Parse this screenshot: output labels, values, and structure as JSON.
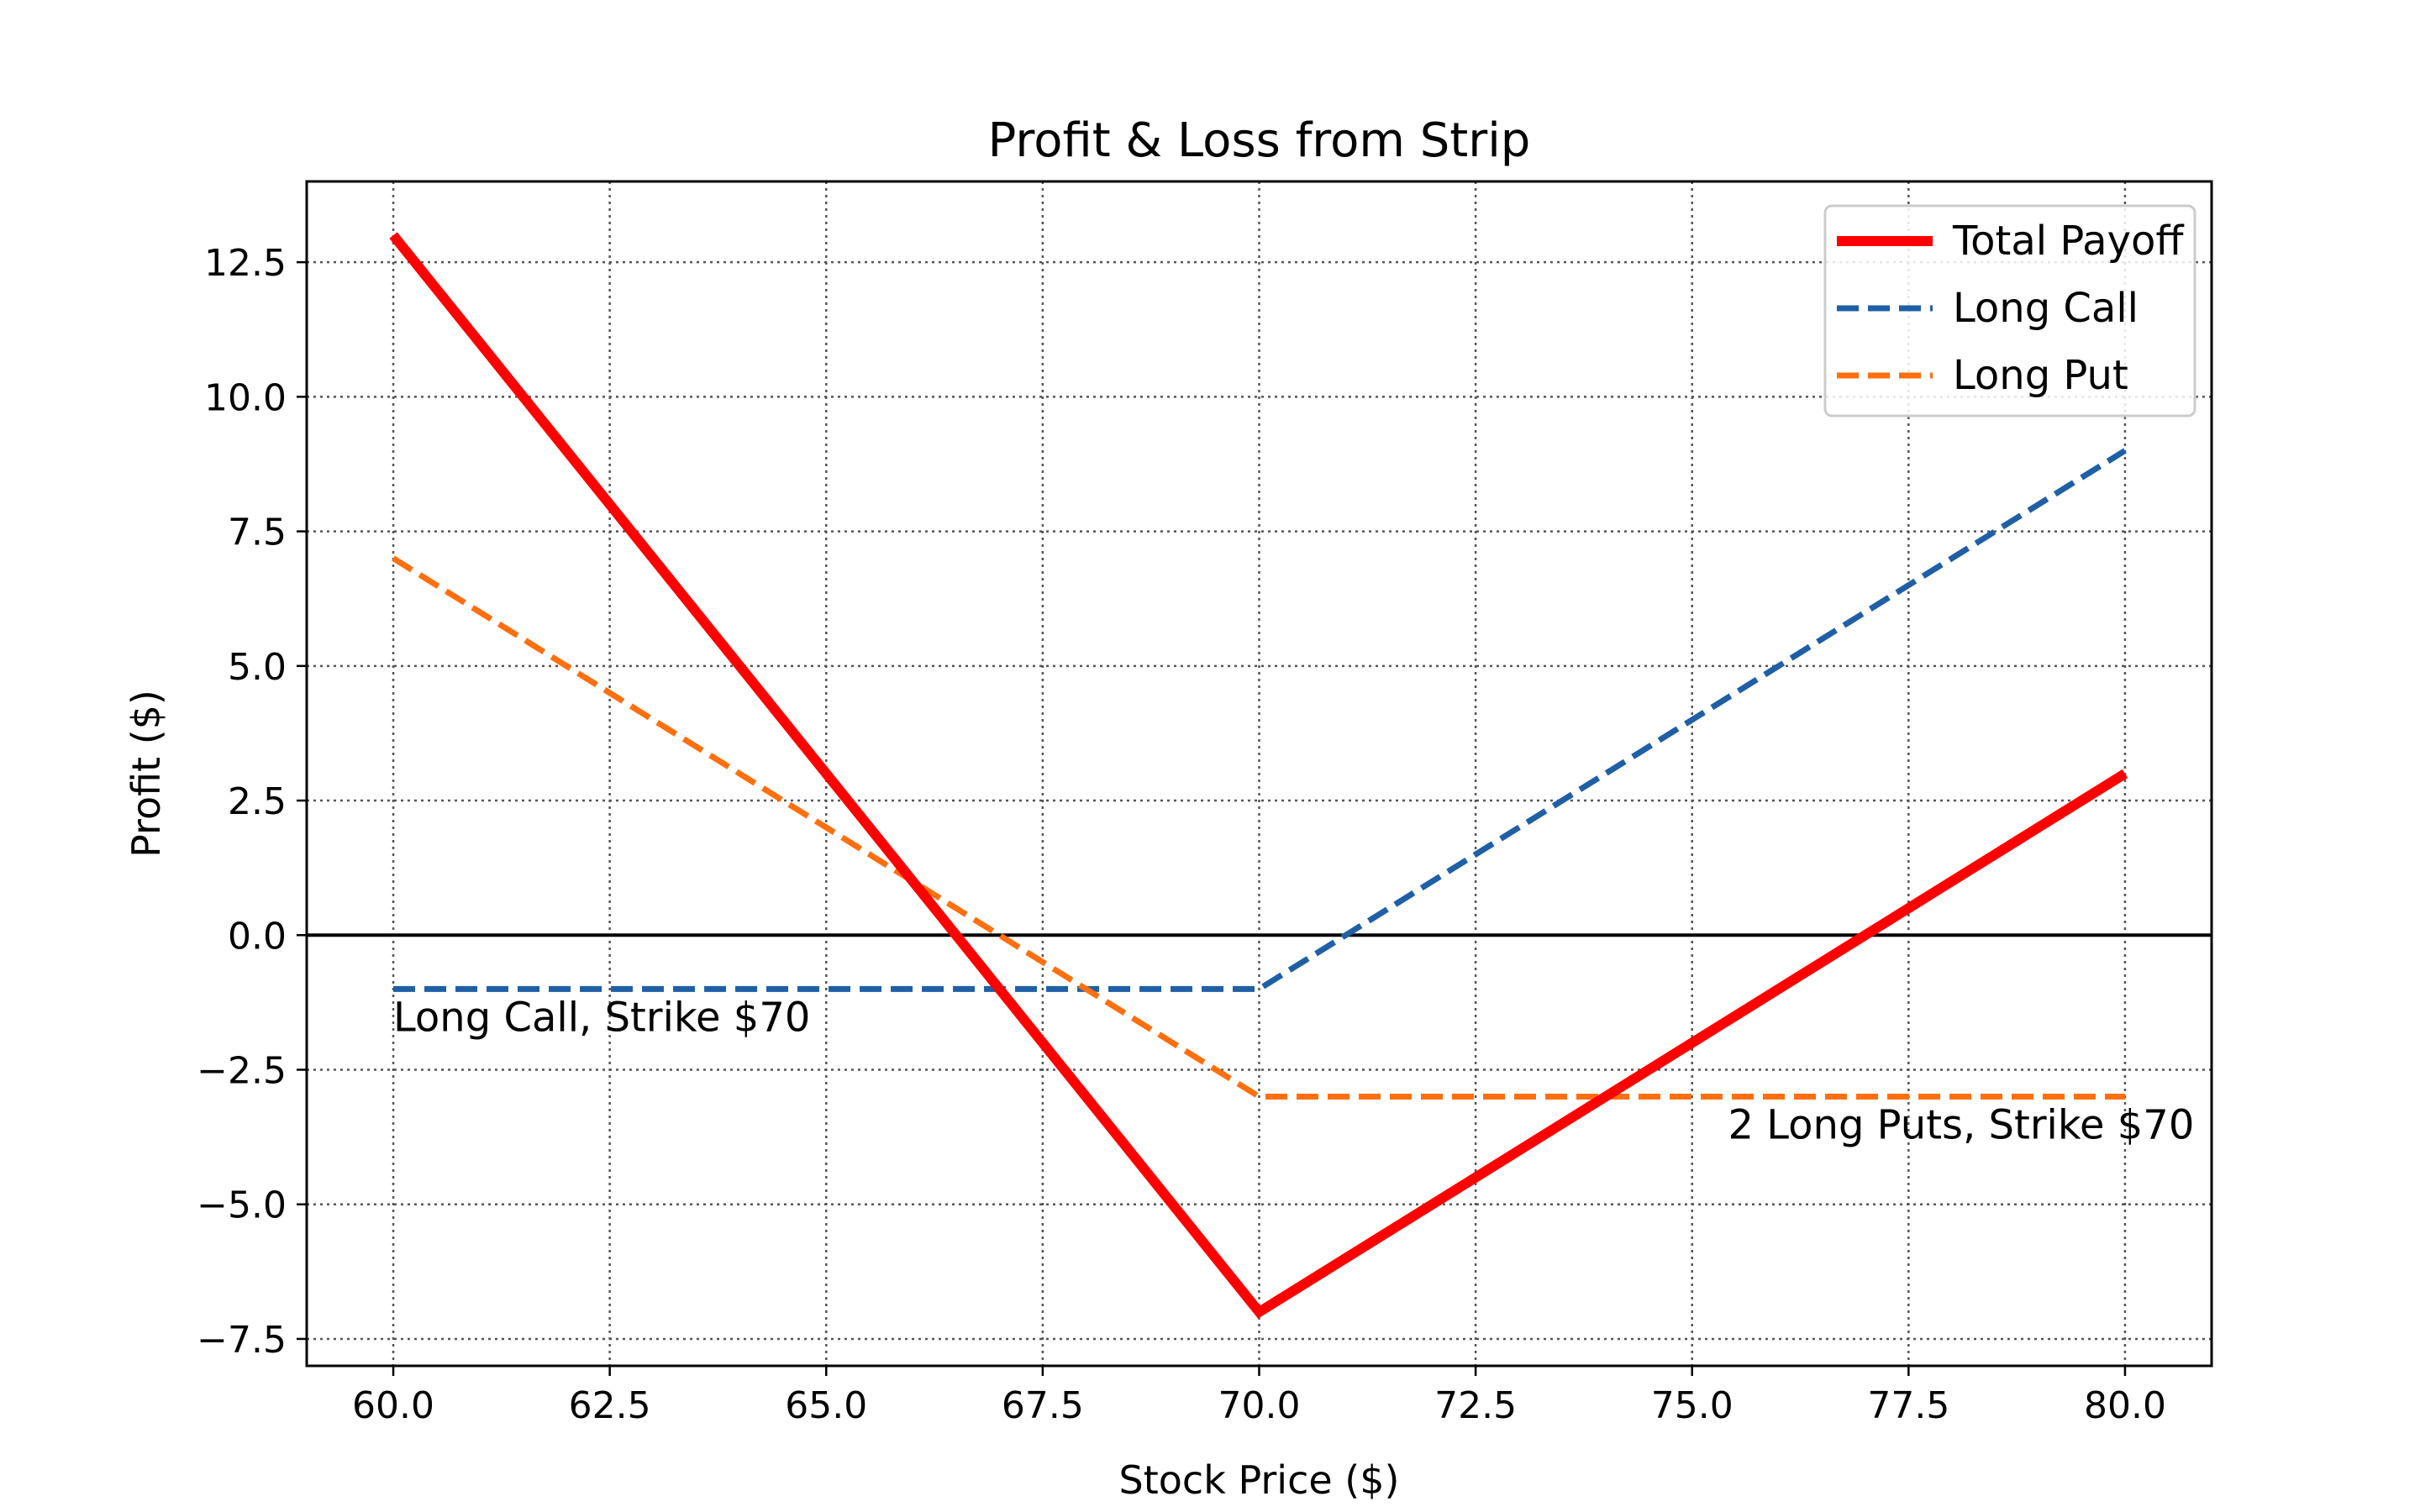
{
  "chart_data": {
    "type": "line",
    "title": "Profit & Loss from Strip",
    "xlabel": "Stock Price ($)",
    "ylabel": "Profit ($)",
    "xlim": [
      59,
      81
    ],
    "ylim": [
      -8,
      14
    ],
    "xticks": [
      60.0,
      62.5,
      65.0,
      67.5,
      70.0,
      72.5,
      75.0,
      77.5,
      80.0
    ],
    "xtick_labels": [
      "60.0",
      "62.5",
      "65.0",
      "67.5",
      "70.0",
      "72.5",
      "75.0",
      "77.5",
      "80.0"
    ],
    "yticks": [
      -7.5,
      -5.0,
      -2.5,
      0.0,
      2.5,
      5.0,
      7.5,
      10.0,
      12.5
    ],
    "ytick_labels": [
      "−7.5",
      "−5.0",
      "−2.5",
      "0.0",
      "2.5",
      "5.0",
      "7.5",
      "10.0",
      "12.5"
    ],
    "grid": true,
    "legend_position": "top-right",
    "zero_line": 0,
    "series": [
      {
        "name": "Total Payoff",
        "style": "solid",
        "color": "#ff0000",
        "x": [
          60,
          70,
          80
        ],
        "y": [
          13,
          -7,
          3
        ]
      },
      {
        "name": "Long Call",
        "style": "dashed",
        "color": "#1f5fa6",
        "x": [
          60,
          70,
          80
        ],
        "y": [
          -1,
          -1,
          9
        ]
      },
      {
        "name": "Long Put",
        "style": "dashed",
        "color": "#ff6f0e",
        "x": [
          60,
          70,
          80
        ],
        "y": [
          7,
          -3,
          -3
        ]
      }
    ],
    "annotations": [
      {
        "text": "Long Call, Strike $70",
        "x": 60,
        "y": -1,
        "anchor": "start"
      },
      {
        "text": "2 Long Puts, Strike $70",
        "x": 80.8,
        "y": -3,
        "anchor": "end"
      }
    ]
  }
}
